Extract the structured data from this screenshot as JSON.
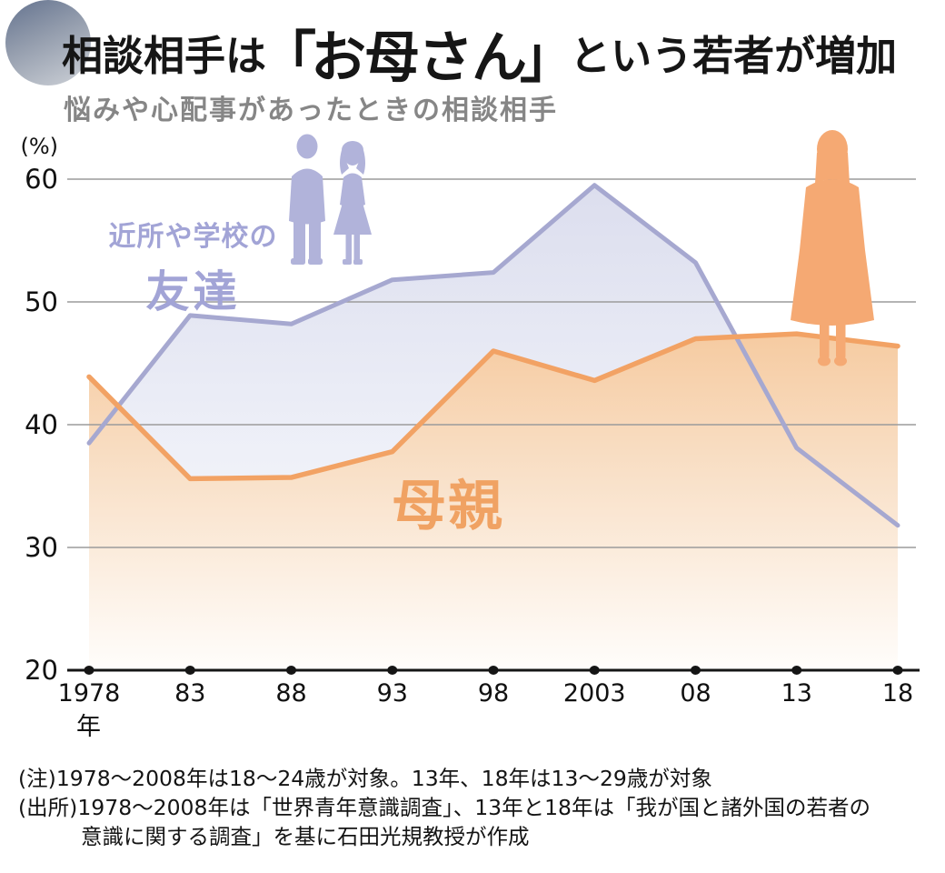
{
  "header": {
    "title_prefix": "相談相手は",
    "title_bracket_open": "「",
    "title_emphasis": "お母さん",
    "title_bracket_close": "」",
    "title_suffix": "という若者が増加",
    "subtitle": "悩みや心配事があったときの相談相手"
  },
  "chart_data": {
    "type": "line",
    "unit_label": "(%)",
    "x_axis_unit": "年",
    "categories": [
      "1978",
      "83",
      "88",
      "93",
      "98",
      "2003",
      "08",
      "13",
      "18"
    ],
    "series": [
      {
        "name": "近所や学校の友達",
        "label_line1": "近所や学校の",
        "label_line2": "友達",
        "color": "#a6a8d0",
        "fill_top": "#dcdeee",
        "values": [
          38.5,
          48.9,
          48.2,
          51.8,
          52.4,
          59.5,
          53.2,
          38.1,
          31.8
        ]
      },
      {
        "name": "母親",
        "label_line1": "母親",
        "color": "#f2a264",
        "fill_top": "#f6cba1",
        "values": [
          43.9,
          35.6,
          35.7,
          37.8,
          46.0,
          43.6,
          47.0,
          47.4,
          46.4
        ]
      }
    ],
    "ylim": [
      20,
      60
    ],
    "yticks": [
      60,
      50,
      40,
      30,
      20
    ],
    "grid": true,
    "legend_position": "inline"
  },
  "pictograms": {
    "friends_color": "#b1b3da",
    "mother_color": "#f5a973"
  },
  "style": {
    "grid_color": "#9b9b9b",
    "axis_color": "#151515",
    "title_color": "#161616",
    "subtitle_color": "#868686",
    "background": "#ffffff"
  },
  "footnotes": {
    "note": "(注)1978〜2008年は18〜24歳が対象。13年、18年は13〜29歳が対象",
    "source_line1": "(出所)1978〜2008年は「世界青年意識調査」、13年と18年は「我が国と諸外国の若者の",
    "source_line2": "意識に関する調査」を基に石田光規教授が作成"
  }
}
